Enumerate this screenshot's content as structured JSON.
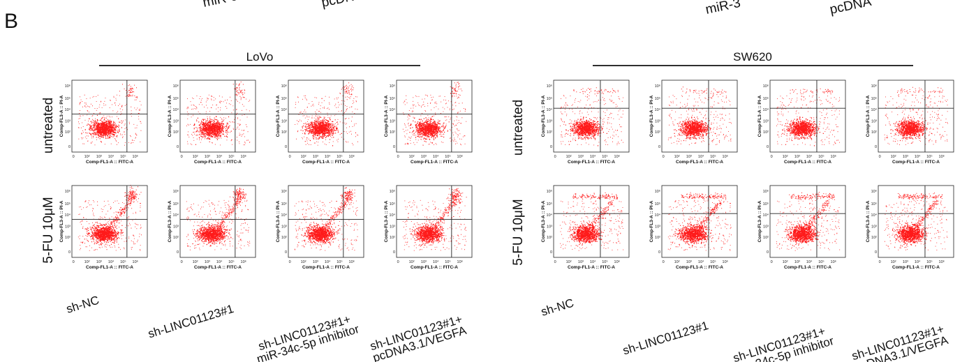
{
  "panel_label": "B",
  "top_cut_text": [
    "miR-3",
    "pcDN",
    "miR-3",
    "pcDNA"
  ],
  "groups": [
    {
      "cell_line": "LoVo"
    },
    {
      "cell_line": "SW620"
    }
  ],
  "row_labels": [
    "untreated",
    "5-FU 10μM"
  ],
  "column_labels": [
    [
      "sh-NC"
    ],
    [
      "sh-LINC01123#1"
    ],
    [
      "sh-LINC01123#1+",
      "miR-34c-5p inhibitor"
    ],
    [
      "sh-LINC01123#1+",
      "pcDNA3.1/VEGFA"
    ]
  ],
  "plot_axes": {
    "xlabel": "Comp-FL1-A :: FITC-A",
    "ylabel": "Comp-FL3-A :: PI-A",
    "tick_labels": [
      "0",
      "10²",
      "10³",
      "10⁴",
      "10⁵",
      "10⁶"
    ]
  },
  "colors": {
    "dots": "#ff1a1a",
    "axes": "#222222",
    "text": "#111111"
  }
}
